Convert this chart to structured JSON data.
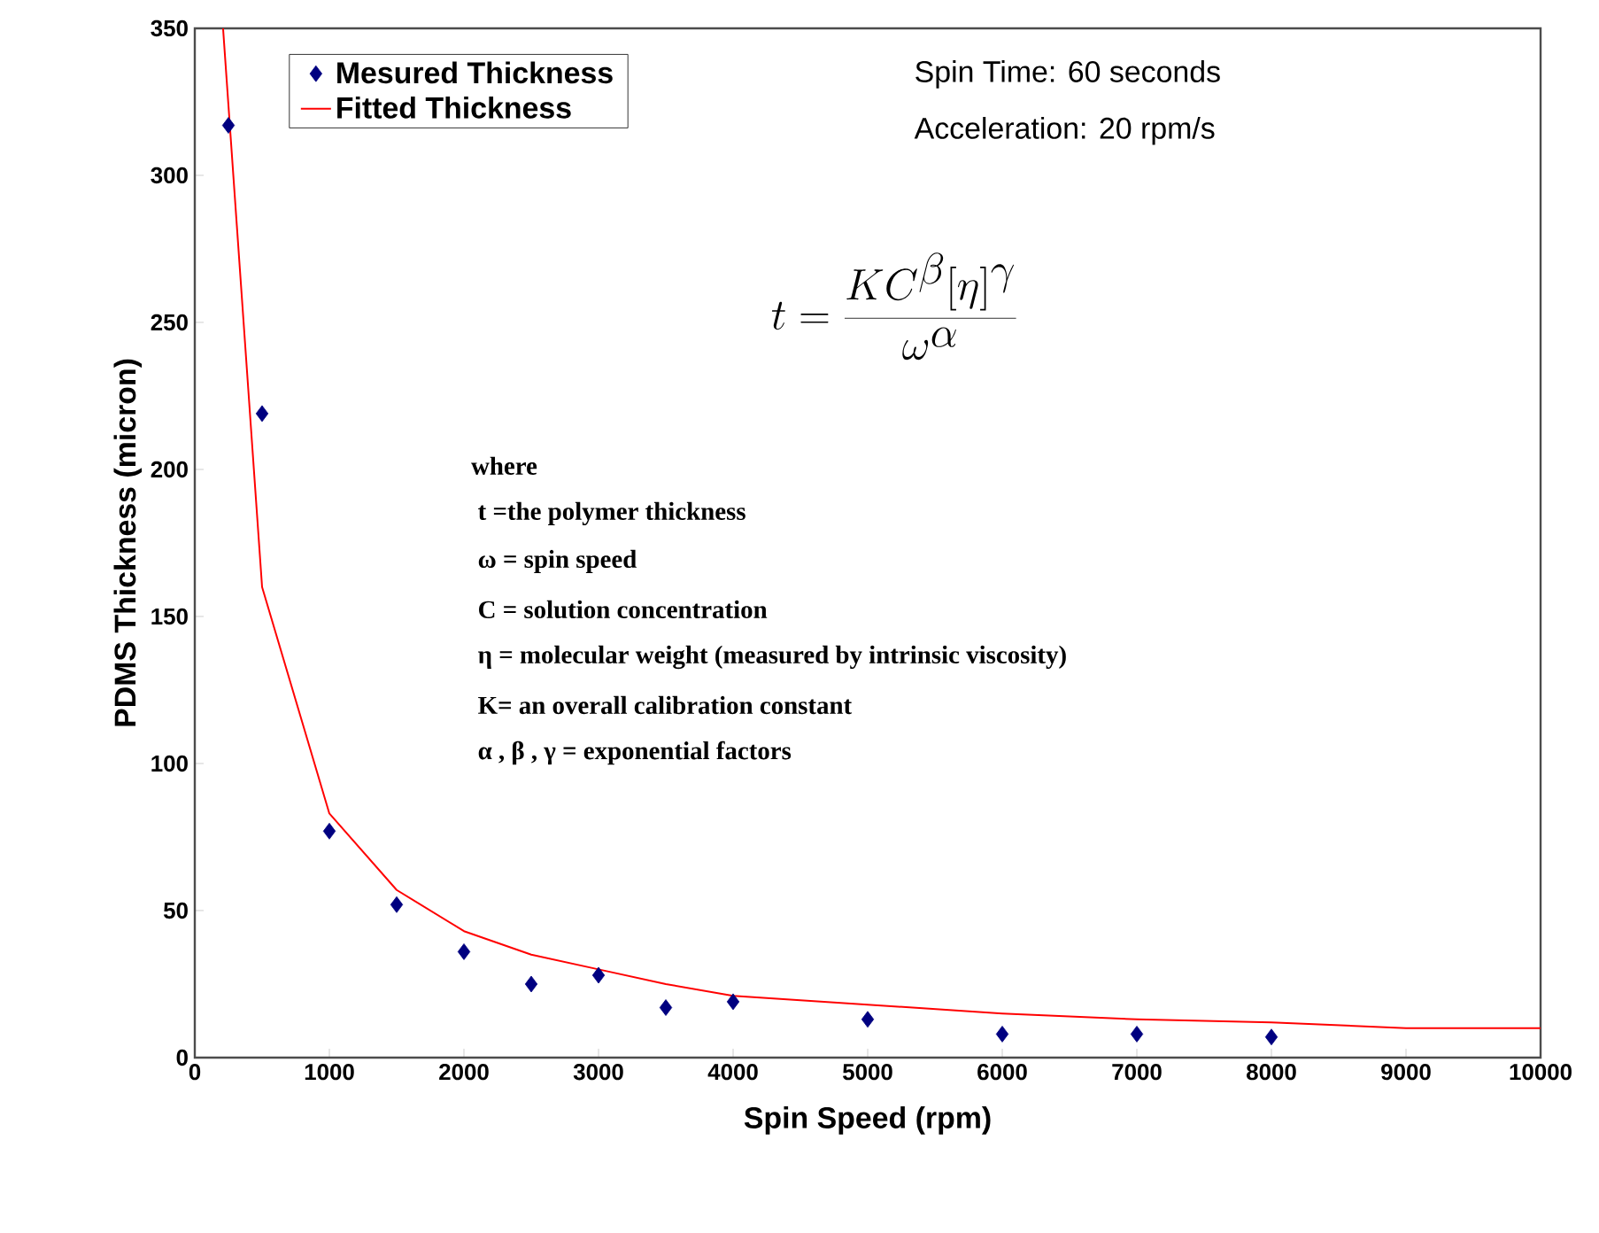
{
  "chart_data": {
    "type": "scatter",
    "xlabel": "Spin Speed (rpm)",
    "ylabel": "PDMS Thickness (micron)",
    "xlim": [
      0,
      10000
    ],
    "ylim": [
      0,
      350
    ],
    "xticks": [
      0,
      1000,
      2000,
      3000,
      4000,
      5000,
      6000,
      7000,
      8000,
      9000,
      10000
    ],
    "yticks": [
      0,
      50,
      100,
      150,
      200,
      250,
      300,
      350
    ],
    "grid": false,
    "legend": "top left",
    "series": [
      {
        "name": "Mesured Thickness",
        "color": "#000080",
        "marker": "diamond",
        "x": [
          250,
          500,
          1000,
          1500,
          2000,
          2500,
          3000,
          3500,
          4000,
          5000,
          6000,
          7000,
          8000
        ],
        "values": [
          317,
          219,
          77,
          52,
          36,
          25,
          28,
          17,
          19,
          13,
          8,
          8,
          7
        ]
      },
      {
        "type": "line",
        "name": "Fitted Thickness",
        "color": "#ff0000",
        "marker": "none",
        "x": [
          210,
          500,
          1000,
          1500,
          2000,
          2500,
          3000,
          3500,
          4000,
          5000,
          6000,
          7000,
          8000,
          9000,
          10000
        ],
        "values": [
          350,
          160,
          83,
          57,
          43,
          35,
          30,
          25,
          21,
          18,
          15,
          13,
          12,
          10,
          10
        ]
      }
    ],
    "annotations": [
      "Spin Time: 60 seconds",
      "Acceleration: 20 rpm/s",
      "t=\\frac{KC^{\\beta}[\\eta]^{\\gamma}}{\\omega^{\\alpha}}",
      "where",
      "t =the polymer thickness",
      "ω = spin speed",
      "C = solution concentration",
      "η = molecular weight (measured by intrinsic viscosity)",
      "K= an overall calibration constant",
      "α , β , γ = exponential factors"
    ]
  }
}
